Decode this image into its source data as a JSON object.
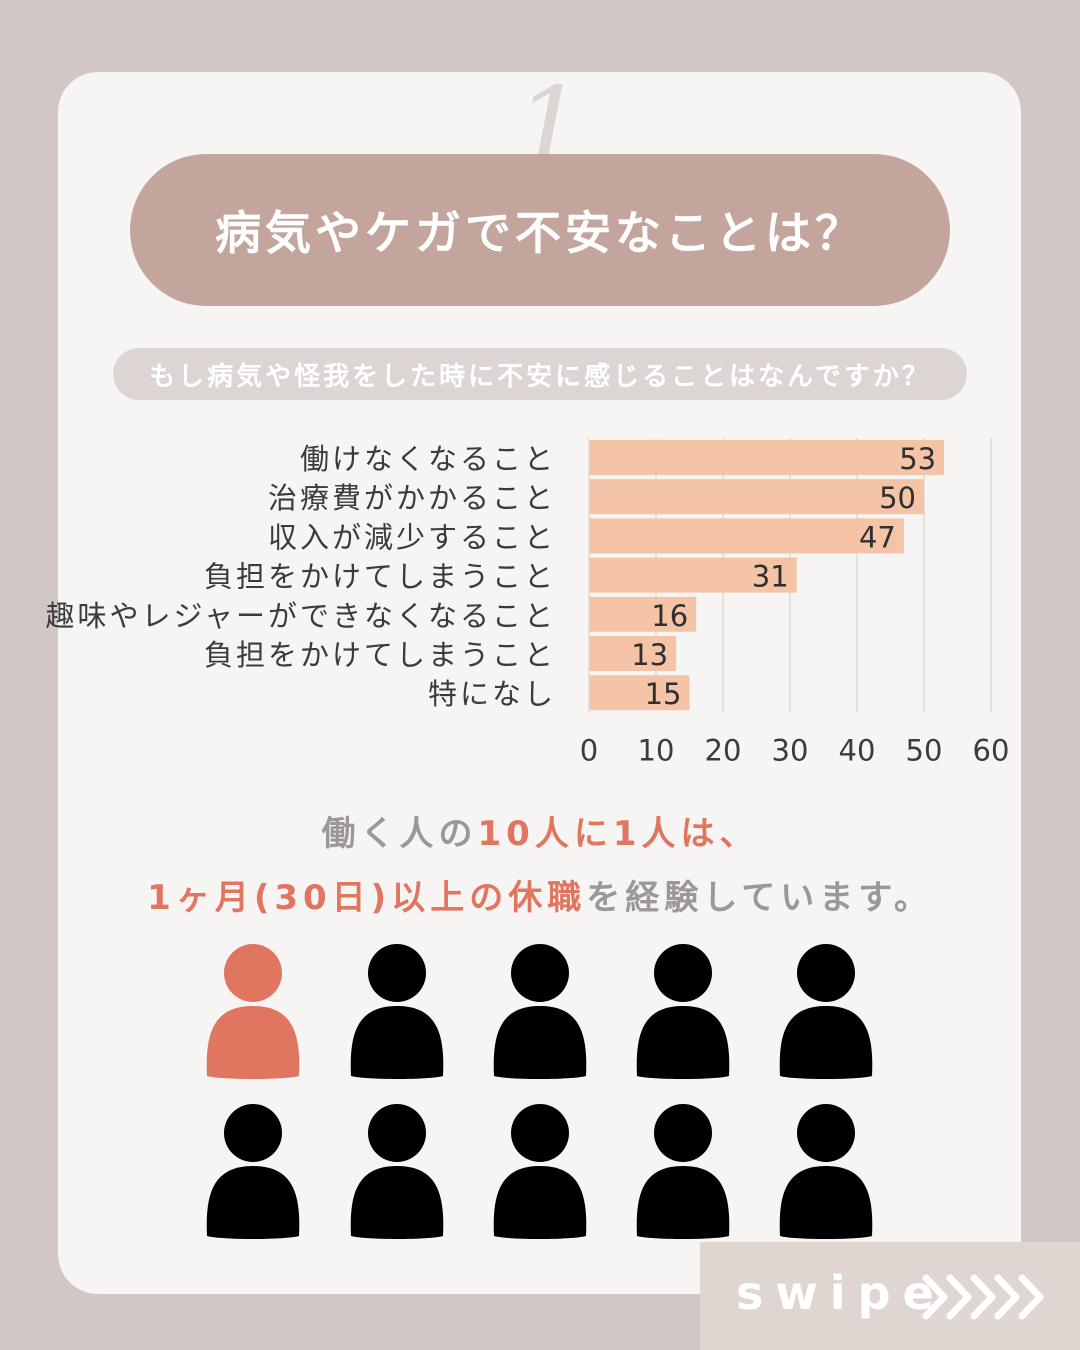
{
  "card": {
    "number": "1",
    "title": "病気やケガで不安なことは？",
    "question": "もし病気や怪我をした時に不安に感じることはなんですか？"
  },
  "chart_data": {
    "type": "bar",
    "orientation": "horizontal",
    "categories": [
      "働けなくなること",
      "治療費がかかること",
      "収入が減少すること",
      "負担をかけてしまうこと",
      "趣味やレジャーができなくなること",
      "負担をかけてしまうこと",
      "特になし"
    ],
    "values": [
      53,
      50,
      47,
      31,
      16,
      13,
      15
    ],
    "xlim": [
      0,
      60
    ],
    "xticks": [
      "0",
      "10",
      "20",
      "30",
      "40",
      "50",
      "60"
    ],
    "grid": true,
    "bar_color": "#f5c3a6"
  },
  "message": {
    "line1_prefix": "働く人の",
    "line1_highlight": "10人に1人は、",
    "line2_highlight": "1ヶ月(30日)以上の休職",
    "line2_suffix": "を経験しています。"
  },
  "people": {
    "total": 10,
    "highlighted": 1,
    "highlight_color": "#e07560",
    "default_color": "#000000"
  },
  "swipe": {
    "label": "swipe"
  },
  "colors": {
    "background": "#d3c7c6",
    "card": "#f7f5f3",
    "title_pill": "#c3a59d",
    "accent": "#e07560"
  }
}
